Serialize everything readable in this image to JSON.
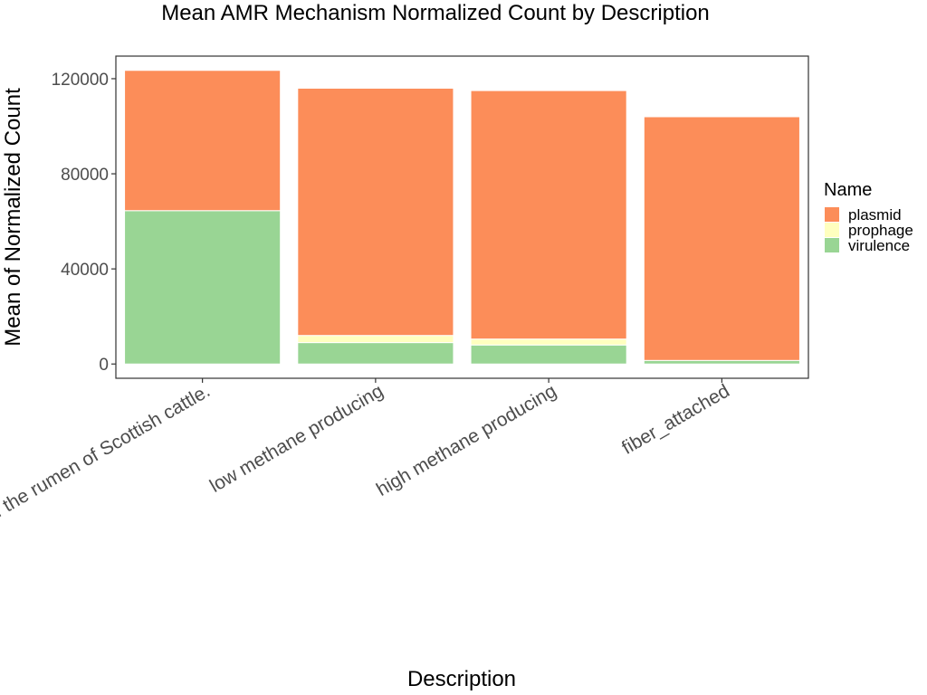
{
  "chart_data": {
    "type": "bar",
    "stacked": true,
    "title": "Mean AMR Mechanism Normalized Count by Description",
    "xlabel": "Description",
    "ylabel": "Mean of Normalized Count",
    "categories": [
      "of the rumen of Scottish cattle.",
      "low methane producing",
      "high methane producing",
      "fiber_attached"
    ],
    "series": [
      {
        "name": "virulence",
        "color": "#99d594",
        "values": [
          64500,
          9000,
          8000,
          1500
        ]
      },
      {
        "name": "prophage",
        "color": "#ffffbf",
        "values": [
          0,
          3000,
          2500,
          0
        ]
      },
      {
        "name": "plasmid",
        "color": "#fc8d59",
        "values": [
          59000,
          104000,
          104500,
          102500
        ]
      }
    ],
    "yticks": [
      0,
      40000,
      80000,
      120000
    ],
    "ylim": [
      -6000,
      129500
    ],
    "legend": {
      "title": "Name",
      "position": "right",
      "order": [
        "plasmid",
        "prophage",
        "virulence"
      ]
    },
    "grid": false
  }
}
